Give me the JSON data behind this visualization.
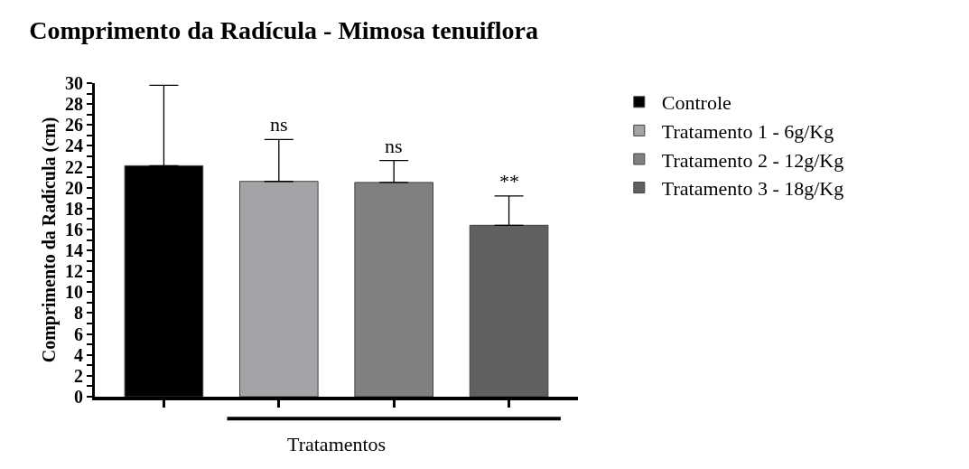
{
  "chart_data": {
    "type": "bar",
    "title": "Comprimento da Radícula - Mimosa tenuiflora",
    "xlabel": "Tratamentos",
    "ylabel": "Comprimento da Radícula (cm)",
    "categories": [
      null,
      null,
      null,
      null
    ],
    "series": [
      {
        "name": "Controle",
        "color": "#000000",
        "values": [
          22.1,
          null,
          null,
          null
        ],
        "errors": [
          [
            22.1,
            29.8
          ],
          null,
          null,
          null
        ]
      },
      {
        "name": "Tratamento 1 - 6g/Kg",
        "color": "#a4a3a8",
        "values": [
          null,
          20.6,
          null,
          null
        ],
        "errors": [
          null,
          [
            20.6,
            24.6
          ],
          null,
          null
        ]
      },
      {
        "name": "Tratamento 2 - 12g/Kg",
        "color": "#808080",
        "values": [
          null,
          null,
          20.5,
          null
        ],
        "errors": [
          null,
          null,
          [
            20.5,
            22.6
          ],
          null
        ]
      },
      {
        "name": "Tratamento 3 - 18g/Kg",
        "color": "#606060",
        "values": [
          null,
          null,
          null,
          16.4
        ],
        "errors": [
          null,
          null,
          null,
          [
            16.4,
            19.2
          ]
        ]
      }
    ],
    "annotations": [
      "ns",
      "ns",
      "**"
    ],
    "ylim": [
      0,
      30
    ],
    "yticks": [
      0,
      {
        "value": 1,
        "label": null
      },
      2,
      {
        "value": 3,
        "label": null
      },
      4,
      {
        "value": 5,
        "label": null
      },
      6,
      {
        "value": 7,
        "label": null
      },
      8,
      {
        "value": 9,
        "label": null
      },
      10,
      {
        "value": 11,
        "label": null
      },
      12,
      {
        "value": 13,
        "label": null
      },
      14,
      {
        "value": 15,
        "label": null
      },
      16,
      {
        "value": 17,
        "label": null
      },
      18,
      {
        "value": 19,
        "label": null
      },
      20,
      {
        "value": 21,
        "label": null
      },
      22,
      {
        "value": 23,
        "label": null
      },
      24,
      {
        "value": 25,
        "label": null
      },
      26,
      {
        "value": 27,
        "label": null
      },
      28,
      {
        "value": 29,
        "label": null
      },
      30
    ],
    "legend": "top right"
  }
}
